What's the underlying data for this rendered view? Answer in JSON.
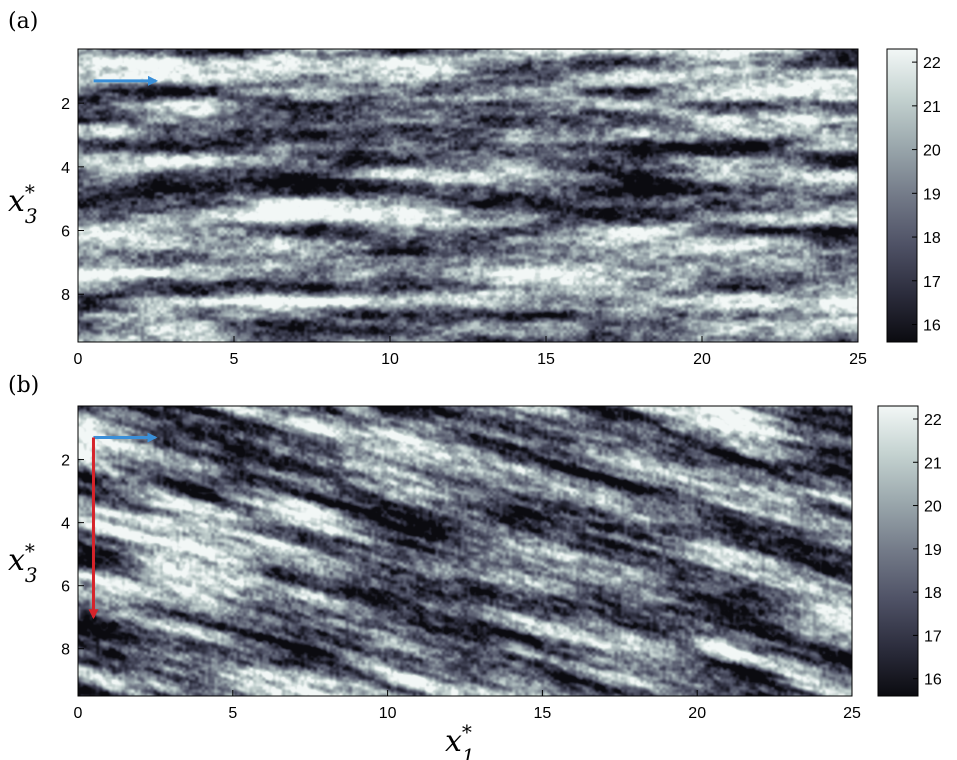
{
  "chart_data": [
    {
      "type": "heatmap",
      "panel_label": "(a)",
      "xlabel": "",
      "ylabel": "x3*",
      "ylabel_base": "x",
      "ylabel_sub": "3",
      "ylabel_sup": "*",
      "xlim": [
        0,
        25
      ],
      "ylim": [
        9.5,
        0.3
      ],
      "x_ticks": [
        0,
        5,
        10,
        15,
        20,
        25
      ],
      "y_ticks": [
        2,
        4,
        6,
        8
      ],
      "colorbar": {
        "range": [
          15.6,
          22.3
        ],
        "ticks": [
          16,
          17,
          18,
          19,
          20,
          21,
          22
        ]
      },
      "pattern": "streamwise-aligned streaks",
      "streak_tilt": 0,
      "arrows": [
        {
          "color": "#3a8fd8",
          "from": [
            0.5,
            1.3
          ],
          "to": [
            2.5,
            1.3
          ]
        }
      ]
    },
    {
      "type": "heatmap",
      "panel_label": "(b)",
      "xlabel": "x1*",
      "xlabel_base": "x",
      "xlabel_sub": "1",
      "xlabel_sup": "*",
      "ylabel": "x3*",
      "ylabel_base": "x",
      "ylabel_sub": "3",
      "ylabel_sup": "*",
      "xlim": [
        0,
        25
      ],
      "ylim": [
        9.5,
        0.3
      ],
      "x_ticks": [
        0,
        5,
        10,
        15,
        20,
        25
      ],
      "y_ticks": [
        2,
        4,
        6,
        8
      ],
      "colorbar": {
        "range": [
          15.6,
          22.3
        ],
        "ticks": [
          16,
          17,
          18,
          19,
          20,
          21,
          22
        ]
      },
      "pattern": "oblique streaks",
      "streak_tilt": 0.24,
      "arrows": [
        {
          "color": "#3a8fd8",
          "from": [
            0.5,
            1.3
          ],
          "to": [
            2.5,
            1.3
          ]
        },
        {
          "color": "#d6232a",
          "from": [
            0.5,
            1.3
          ],
          "to": [
            0.5,
            7.0
          ]
        }
      ]
    }
  ],
  "colormap": [
    "#0b0b10",
    "#2c2d3d",
    "#4f5266",
    "#737a88",
    "#9aa7ac",
    "#c4d2d0",
    "#f2f7f6"
  ]
}
